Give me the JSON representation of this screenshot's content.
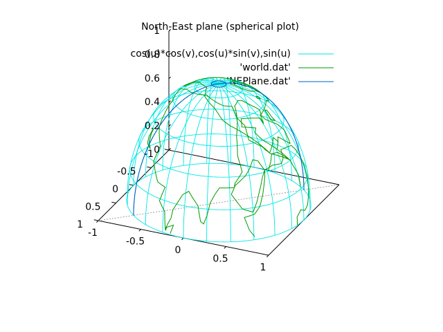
{
  "chart_data": {
    "type": "surface3d-spherical",
    "title": "North-East plane (spherical plot)",
    "legend_position": "top-right",
    "series": [
      {
        "name": "cos(u)*cos(v),cos(u)*sin(v),sin(u)",
        "color": "#00e6e6",
        "kind": "sphere-grid"
      },
      {
        "name": "'world.dat'",
        "color": "#009900",
        "kind": "coastline"
      },
      {
        "name": "'NEPlane.dat'",
        "color": "#0060c0",
        "kind": "meridian-plane"
      }
    ],
    "x_ticks": [
      "-1",
      "-0.5",
      "0",
      "0.5",
      "1"
    ],
    "y_ticks": [
      "-1",
      "-0.5",
      "0",
      "0.5",
      "1"
    ],
    "z_ticks": [
      "0",
      "0.2",
      "0.4",
      "0.6",
      "0.8",
      "1"
    ],
    "xlim": [
      -1,
      1
    ],
    "ylim": [
      -1,
      1
    ],
    "zlim": [
      0,
      1
    ],
    "hemisphere": "upper",
    "grid_step_deg": 15
  }
}
